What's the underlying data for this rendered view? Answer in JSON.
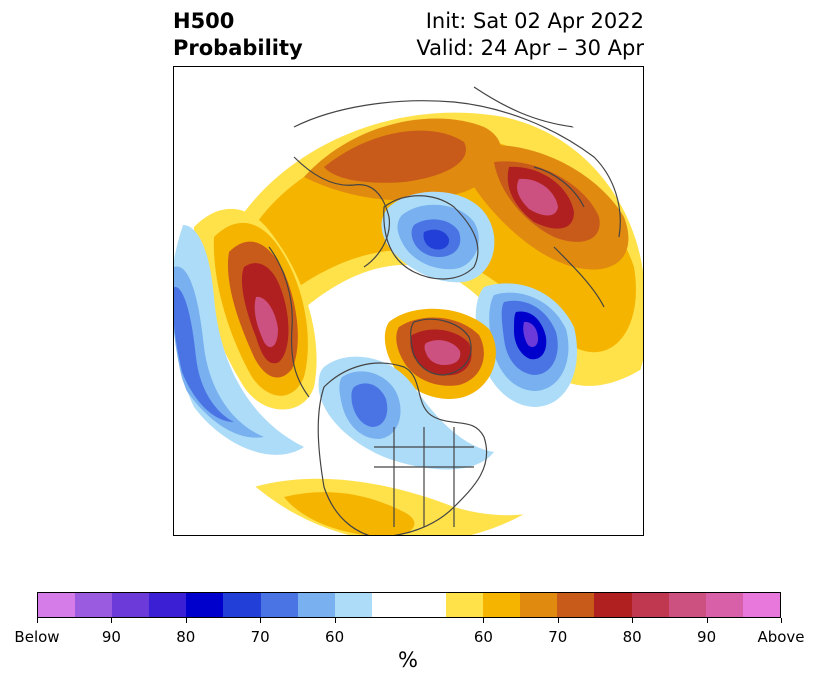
{
  "title": {
    "left_line1": "H500",
    "left_line2": "Probability",
    "right_line1": "Init: Sat 02 Apr 2022",
    "right_line2": "Valid: 24 Apr – 30 Apr"
  },
  "colorbar": {
    "unit": "%",
    "colors": [
      "#d57ce8",
      "#9b5be0",
      "#6c3ad8",
      "#3a1fd4",
      "#0000cc",
      "#2240d8",
      "#4a74e4",
      "#78b0f0",
      "#addcf8",
      "#ffffff",
      "#ffffff",
      "#ffe14a",
      "#f5b400",
      "#e08a10",
      "#c85a1a",
      "#b02020",
      "#c03850",
      "#cc5080",
      "#d860a8",
      "#e878dc"
    ],
    "tick_labels": [
      "Below",
      "90",
      "80",
      "70",
      "60",
      "60",
      "70",
      "80",
      "90",
      "Above"
    ]
  }
}
